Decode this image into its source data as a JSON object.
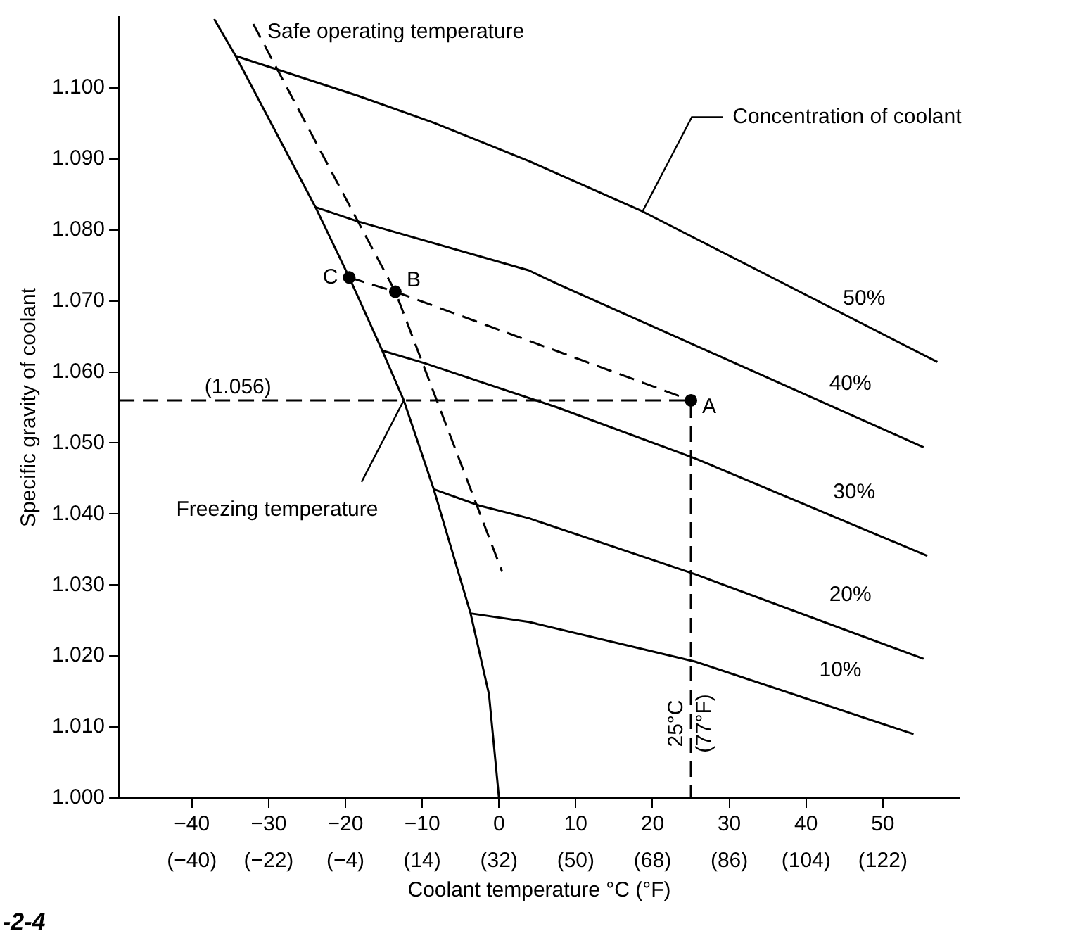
{
  "chart_data": {
    "type": "line",
    "xlabel": "Coolant temperature °C (°F)",
    "ylabel": "Specific gravity of coolant",
    "xlim": [
      -49.5,
      60
    ],
    "ylim": [
      1.0,
      1.11
    ],
    "xticks": [
      {
        "value": -40,
        "label": "−40"
      },
      {
        "value": -30,
        "label": "−30"
      },
      {
        "value": -20,
        "label": "−20"
      },
      {
        "value": -10,
        "label": "−10"
      },
      0,
      10,
      20,
      30,
      40,
      50
    ],
    "x2lim": [
      -57.1,
      140
    ],
    "x2ticks": [
      {
        "value": -40,
        "label": "(−40)"
      },
      {
        "value": -22,
        "label": "(−22)"
      },
      {
        "value": -4,
        "label": "(−4)"
      },
      {
        "value": 14,
        "label": "(14)"
      },
      {
        "value": 32,
        "label": "(32)"
      },
      {
        "value": 50,
        "label": "(50)"
      },
      {
        "value": 68,
        "label": "(68)"
      },
      {
        "value": 86,
        "label": "(86)"
      },
      {
        "value": 104,
        "label": "(104)"
      },
      {
        "value": 122,
        "label": "(122)"
      }
    ],
    "yticks": [
      {
        "value": 1.0,
        "label": "1.000"
      },
      {
        "value": 1.01,
        "label": "1.010"
      },
      {
        "value": 1.02,
        "label": "1.020"
      },
      {
        "value": 1.03,
        "label": "1.030"
      },
      {
        "value": 1.04,
        "label": "1.040"
      },
      {
        "value": 1.05,
        "label": "1.050"
      },
      {
        "value": 1.06,
        "label": "1.060"
      },
      {
        "value": 1.07,
        "label": "1.070"
      },
      {
        "value": 1.08,
        "label": "1.080"
      },
      {
        "value": 1.09,
        "label": "1.090"
      },
      {
        "value": 1.1,
        "label": "1.100"
      }
    ],
    "grid": false,
    "legend": false,
    "marker": "none",
    "line_style": "solid",
    "series": [
      {
        "name": "Freezing temperature",
        "color": "#000000",
        "x": [
          -37.1,
          -34.3,
          -23.9,
          -19.5,
          -15.2,
          -12.4,
          -8.5,
          -3.7,
          -1.3,
          0
        ],
        "values": [
          1.1097,
          1.1045,
          1.0832,
          1.0733,
          1.063,
          1.056,
          1.0435,
          1.026,
          1.0146,
          1.0
        ]
      },
      {
        "name": "Safe operating temperature",
        "color": "#000000",
        "line_style": "dashed",
        "x": [
          -32,
          -22.7,
          -13.5,
          0.4
        ],
        "values": [
          1.109,
          1.09,
          1.0713,
          1.0319
        ]
      },
      {
        "name": "50%",
        "color": "#000000",
        "x": [
          -34.3,
          -18.4,
          -8.5,
          3.9,
          18.7,
          57.1
        ],
        "values": [
          1.1045,
          1.0989,
          1.0951,
          1.0897,
          1.0826,
          1.0614
        ]
      },
      {
        "name": "40%",
        "color": "#000000",
        "x": [
          -23.9,
          -18.4,
          3.9,
          7.6,
          55.3
        ],
        "values": [
          1.0832,
          1.0812,
          1.0743,
          1.0724,
          1.0494
        ]
      },
      {
        "name": "30%",
        "color": "#000000",
        "x": [
          -15.2,
          -9.6,
          7.6,
          25.6,
          55.8
        ],
        "values": [
          1.063,
          1.0612,
          1.055,
          1.0478,
          1.0341
        ]
      },
      {
        "name": "20%",
        "color": "#000000",
        "x": [
          -8.5,
          -2.6,
          3.9,
          25.6,
          55.3
        ],
        "values": [
          1.0435,
          1.0412,
          1.0394,
          1.0315,
          1.0196
        ]
      },
      {
        "name": "10%",
        "color": "#000000",
        "x": [
          -3.7,
          3.9,
          25.6,
          54
        ],
        "values": [
          1.026,
          1.0248,
          1.0192,
          1.009
        ]
      },
      {
        "type": "scatter",
        "color": "#000000",
        "line_style": "dashed",
        "marker": "circle",
        "x": [
          -19.5,
          -13.5,
          25
        ],
        "values": [
          1.0733,
          1.0713,
          1.056
        ]
      },
      {
        "color": "#000000",
        "line_style": "dashed",
        "x": [
          -49.5,
          25,
          25
        ],
        "values": [
          1.056,
          1.056,
          1.0
        ]
      }
    ],
    "annotations": [
      {
        "text": "Concentration of coolant",
        "x": 18.7,
        "y": 1.0826
      },
      {
        "text": "(1.056)",
        "x": -34,
        "y": 1.056
      },
      {
        "text": "A",
        "x": 25,
        "y": 1.056
      },
      {
        "text": "B",
        "x": -13.5,
        "y": 1.0713
      },
      {
        "text": "C",
        "x": -19.5,
        "y": 1.0733
      },
      {
        "text": "25°C\n(77°F)",
        "x": 25,
        "y": 1.0
      },
      "-2-4"
    ]
  }
}
